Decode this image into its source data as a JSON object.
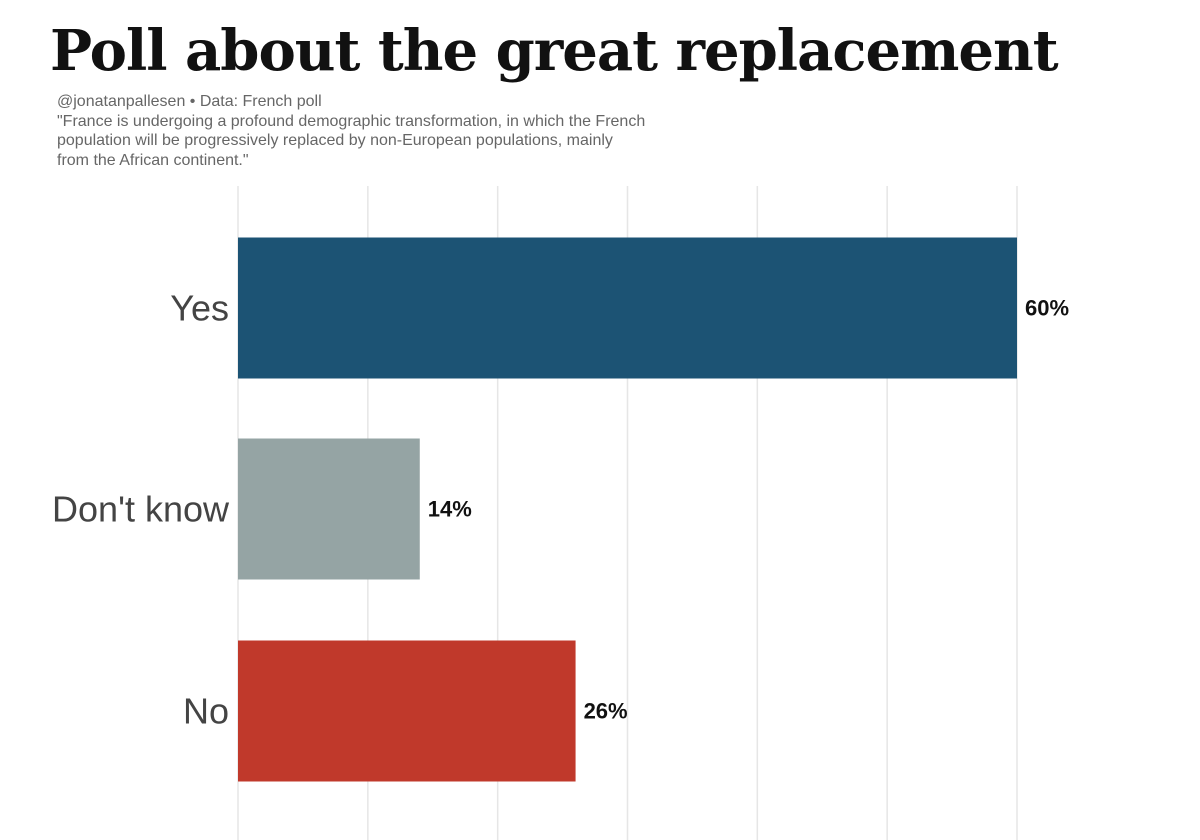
{
  "chart_data": {
    "type": "bar",
    "orientation": "horizontal",
    "title": "Poll about the great replacement",
    "subtitle": [
      "@jonatanpallesen • Data: French poll",
      "\"France is undergoing a profound demographic transformation, in which the French",
      "population will be progressively replaced by non-European populations, mainly",
      "from the African continent.\""
    ],
    "categories": [
      "Yes",
      "Don't know",
      "No"
    ],
    "values": [
      60,
      14,
      26
    ],
    "value_labels": [
      "60%",
      "14%",
      "26%"
    ],
    "colors": [
      "#1c5374",
      "#95a4a4",
      "#c0392b"
    ],
    "xlim": [
      0,
      60
    ],
    "grid_step": 10,
    "grid": true,
    "legend": "none",
    "xlabel": "",
    "ylabel": ""
  }
}
